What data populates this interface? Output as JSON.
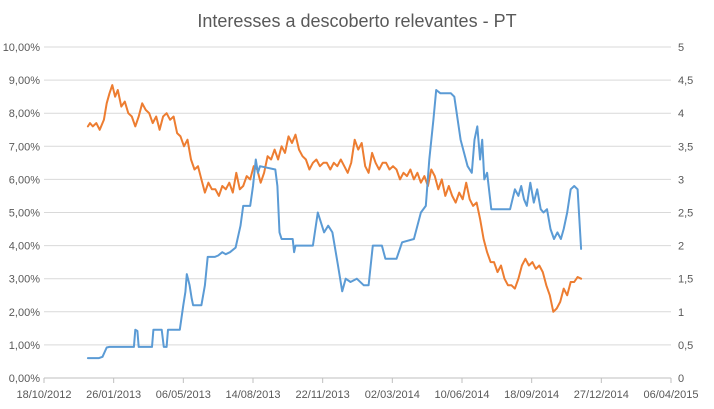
{
  "chart_data": {
    "type": "line",
    "title": "Interesses a descoberto relevantes - PT",
    "xlabel": "",
    "ylabel": "",
    "grid": true,
    "legend": "none",
    "x_axis": {
      "type": "date",
      "range": [
        "2012-10-18",
        "2015-04-06"
      ],
      "ticks": [
        "18/10/2012",
        "26/01/2013",
        "06/05/2013",
        "14/08/2013",
        "22/11/2013",
        "02/03/2014",
        "10/06/2014",
        "18/09/2014",
        "27/12/2014",
        "06/04/2015"
      ],
      "tick_dates": [
        "2012-10-18",
        "2013-01-26",
        "2013-05-06",
        "2013-08-14",
        "2013-11-22",
        "2014-03-02",
        "2014-06-10",
        "2014-09-18",
        "2014-12-27",
        "2015-04-06"
      ]
    },
    "y_left": {
      "ylim": [
        0,
        10
      ],
      "ticks": [
        "0,00%",
        "1,00%",
        "2,00%",
        "3,00%",
        "4,00%",
        "5,00%",
        "6,00%",
        "7,00%",
        "8,00%",
        "9,00%",
        "10,00%"
      ]
    },
    "y_right": {
      "ylim": [
        0,
        5
      ],
      "ticks": [
        "0",
        "0,5",
        "1",
        "1,5",
        "2",
        "2,5",
        "3",
        "3,5",
        "4",
        "4,5",
        "5"
      ]
    },
    "series": [
      {
        "axis": "left",
        "color": "#ed7d31",
        "points": [
          [
            "2012-12-20",
            7.6
          ],
          [
            "2012-12-23",
            7.7
          ],
          [
            "2012-12-27",
            7.6
          ],
          [
            "2013-01-01",
            7.7
          ],
          [
            "2013-01-06",
            7.5
          ],
          [
            "2013-01-12",
            7.8
          ],
          [
            "2013-01-16",
            8.3
          ],
          [
            "2013-01-20",
            8.6
          ],
          [
            "2013-01-24",
            8.85
          ],
          [
            "2013-01-28",
            8.5
          ],
          [
            "2013-02-01",
            8.7
          ],
          [
            "2013-02-06",
            8.2
          ],
          [
            "2013-02-11",
            8.35
          ],
          [
            "2013-02-16",
            8.0
          ],
          [
            "2013-02-21",
            7.9
          ],
          [
            "2013-02-26",
            7.6
          ],
          [
            "2013-03-03",
            7.9
          ],
          [
            "2013-03-08",
            8.3
          ],
          [
            "2013-03-13",
            8.1
          ],
          [
            "2013-03-18",
            8.0
          ],
          [
            "2013-03-23",
            7.7
          ],
          [
            "2013-03-28",
            7.9
          ],
          [
            "2013-04-02",
            7.5
          ],
          [
            "2013-04-07",
            7.9
          ],
          [
            "2013-04-12",
            8.0
          ],
          [
            "2013-04-17",
            7.8
          ],
          [
            "2013-04-22",
            7.9
          ],
          [
            "2013-04-27",
            7.4
          ],
          [
            "2013-05-02",
            7.3
          ],
          [
            "2013-05-07",
            7.0
          ],
          [
            "2013-05-12",
            7.2
          ],
          [
            "2013-05-17",
            6.6
          ],
          [
            "2013-05-22",
            6.3
          ],
          [
            "2013-05-27",
            6.4
          ],
          [
            "2013-06-01",
            6.0
          ],
          [
            "2013-06-06",
            5.6
          ],
          [
            "2013-06-11",
            5.9
          ],
          [
            "2013-06-16",
            5.7
          ],
          [
            "2013-06-21",
            5.7
          ],
          [
            "2013-06-26",
            5.5
          ],
          [
            "2013-07-01",
            5.8
          ],
          [
            "2013-07-06",
            5.7
          ],
          [
            "2013-07-11",
            5.9
          ],
          [
            "2013-07-16",
            5.6
          ],
          [
            "2013-07-21",
            6.2
          ],
          [
            "2013-07-26",
            5.7
          ],
          [
            "2013-07-31",
            5.8
          ],
          [
            "2013-08-05",
            6.1
          ],
          [
            "2013-08-10",
            6.0
          ],
          [
            "2013-08-15",
            6.4
          ],
          [
            "2013-08-20",
            6.3
          ],
          [
            "2013-08-25",
            5.9
          ],
          [
            "2013-08-30",
            6.2
          ],
          [
            "2013-09-04",
            6.7
          ],
          [
            "2013-09-09",
            6.6
          ],
          [
            "2013-09-14",
            6.9
          ],
          [
            "2013-09-19",
            6.6
          ],
          [
            "2013-09-24",
            7.0
          ],
          [
            "2013-09-29",
            6.8
          ],
          [
            "2013-10-04",
            7.3
          ],
          [
            "2013-10-09",
            7.1
          ],
          [
            "2013-10-14",
            7.35
          ],
          [
            "2013-10-19",
            6.9
          ],
          [
            "2013-10-24",
            6.7
          ],
          [
            "2013-10-29",
            6.6
          ],
          [
            "2013-11-03",
            6.3
          ],
          [
            "2013-11-08",
            6.5
          ],
          [
            "2013-11-13",
            6.6
          ],
          [
            "2013-11-18",
            6.4
          ],
          [
            "2013-11-23",
            6.5
          ],
          [
            "2013-11-28",
            6.5
          ],
          [
            "2013-12-03",
            6.3
          ],
          [
            "2013-12-08",
            6.5
          ],
          [
            "2013-12-13",
            6.4
          ],
          [
            "2013-12-18",
            6.6
          ],
          [
            "2013-12-23",
            6.4
          ],
          [
            "2013-12-28",
            6.2
          ],
          [
            "2014-01-02",
            6.5
          ],
          [
            "2014-01-07",
            7.2
          ],
          [
            "2014-01-12",
            6.9
          ],
          [
            "2014-01-17",
            7.1
          ],
          [
            "2014-01-22",
            6.4
          ],
          [
            "2014-01-27",
            6.2
          ],
          [
            "2014-02-01",
            6.8
          ],
          [
            "2014-02-06",
            6.5
          ],
          [
            "2014-02-11",
            6.3
          ],
          [
            "2014-02-16",
            6.5
          ],
          [
            "2014-02-21",
            6.5
          ],
          [
            "2014-02-26",
            6.3
          ],
          [
            "2014-03-03",
            6.4
          ],
          [
            "2014-03-08",
            6.3
          ],
          [
            "2014-03-13",
            6.0
          ],
          [
            "2014-03-18",
            6.2
          ],
          [
            "2014-03-23",
            6.1
          ],
          [
            "2014-03-28",
            6.3
          ],
          [
            "2014-04-02",
            6.0
          ],
          [
            "2014-04-07",
            6.2
          ],
          [
            "2014-04-12",
            5.9
          ],
          [
            "2014-04-17",
            6.1
          ],
          [
            "2014-04-22",
            5.8
          ],
          [
            "2014-04-27",
            6.3
          ],
          [
            "2014-05-02",
            6.1
          ],
          [
            "2014-05-07",
            5.7
          ],
          [
            "2014-05-12",
            6.0
          ],
          [
            "2014-05-17",
            5.5
          ],
          [
            "2014-05-22",
            5.8
          ],
          [
            "2014-05-27",
            5.5
          ],
          [
            "2014-06-01",
            5.3
          ],
          [
            "2014-06-06",
            5.6
          ],
          [
            "2014-06-11",
            5.4
          ],
          [
            "2014-06-16",
            5.9
          ],
          [
            "2014-06-21",
            5.4
          ],
          [
            "2014-06-26",
            5.2
          ],
          [
            "2014-07-01",
            5.3
          ],
          [
            "2014-07-06",
            4.8
          ],
          [
            "2014-07-11",
            4.2
          ],
          [
            "2014-07-16",
            3.8
          ],
          [
            "2014-07-21",
            3.5
          ],
          [
            "2014-07-26",
            3.5
          ],
          [
            "2014-07-31",
            3.2
          ],
          [
            "2014-08-05",
            3.4
          ],
          [
            "2014-08-10",
            3.0
          ],
          [
            "2014-08-15",
            2.8
          ],
          [
            "2014-08-20",
            2.8
          ],
          [
            "2014-08-25",
            2.7
          ],
          [
            "2014-08-30",
            3.0
          ],
          [
            "2014-09-04",
            3.4
          ],
          [
            "2014-09-09",
            3.6
          ],
          [
            "2014-09-14",
            3.4
          ],
          [
            "2014-09-19",
            3.5
          ],
          [
            "2014-09-24",
            3.3
          ],
          [
            "2014-09-29",
            3.4
          ],
          [
            "2014-10-04",
            3.2
          ],
          [
            "2014-10-09",
            2.8
          ],
          [
            "2014-10-14",
            2.5
          ],
          [
            "2014-10-19",
            2.0
          ],
          [
            "2014-10-24",
            2.1
          ],
          [
            "2014-10-29",
            2.3
          ],
          [
            "2014-11-03",
            2.7
          ],
          [
            "2014-11-08",
            2.5
          ],
          [
            "2014-11-13",
            2.9
          ],
          [
            "2014-11-18",
            2.9
          ],
          [
            "2014-11-23",
            3.05
          ],
          [
            "2014-11-28",
            3.0
          ]
        ]
      },
      {
        "axis": "right",
        "color": "#5b9bd5",
        "points": [
          [
            "2012-12-20",
            0.3
          ],
          [
            "2013-01-05",
            0.3
          ],
          [
            "2013-01-10",
            0.32
          ],
          [
            "2013-01-16",
            0.46
          ],
          [
            "2013-01-20",
            0.47
          ],
          [
            "2013-02-20",
            0.47
          ],
          [
            "2013-02-24",
            0.47
          ],
          [
            "2013-02-26",
            0.73
          ],
          [
            "2013-03-01",
            0.71
          ],
          [
            "2013-03-03",
            0.47
          ],
          [
            "2013-03-22",
            0.47
          ],
          [
            "2013-03-24",
            0.73
          ],
          [
            "2013-04-05",
            0.73
          ],
          [
            "2013-04-08",
            0.47
          ],
          [
            "2013-04-12",
            0.47
          ],
          [
            "2013-04-14",
            0.73
          ],
          [
            "2013-05-01",
            0.73
          ],
          [
            "2013-05-06",
            1.1
          ],
          [
            "2013-05-09",
            1.3
          ],
          [
            "2013-05-11",
            1.57
          ],
          [
            "2013-05-15",
            1.4
          ],
          [
            "2013-05-18",
            1.2
          ],
          [
            "2013-05-20",
            1.1
          ],
          [
            "2013-06-01",
            1.1
          ],
          [
            "2013-06-06",
            1.4
          ],
          [
            "2013-06-10",
            1.83
          ],
          [
            "2013-06-20",
            1.83
          ],
          [
            "2013-06-25",
            1.85
          ],
          [
            "2013-07-01",
            1.9
          ],
          [
            "2013-07-06",
            1.87
          ],
          [
            "2013-07-12",
            1.9
          ],
          [
            "2013-07-20",
            1.97
          ],
          [
            "2013-07-27",
            2.3
          ],
          [
            "2013-07-31",
            2.6
          ],
          [
            "2013-08-10",
            2.6
          ],
          [
            "2013-08-14",
            2.9
          ],
          [
            "2013-08-18",
            3.3
          ],
          [
            "2013-08-21",
            3.1
          ],
          [
            "2013-08-24",
            3.2
          ],
          [
            "2013-09-15",
            3.15
          ],
          [
            "2013-09-18",
            2.9
          ],
          [
            "2013-09-21",
            2.2
          ],
          [
            "2013-09-24",
            2.1
          ],
          [
            "2013-10-10",
            2.1
          ],
          [
            "2013-10-12",
            1.9
          ],
          [
            "2013-10-14",
            2.0
          ],
          [
            "2013-11-08",
            2.0
          ],
          [
            "2013-11-15",
            2.5
          ],
          [
            "2013-11-24",
            2.2
          ],
          [
            "2013-11-30",
            2.3
          ],
          [
            "2013-12-06",
            2.2
          ],
          [
            "2013-12-14",
            1.7
          ],
          [
            "2013-12-20",
            1.31
          ],
          [
            "2013-12-25",
            1.5
          ],
          [
            "2014-01-01",
            1.45
          ],
          [
            "2014-01-10",
            1.5
          ],
          [
            "2014-01-20",
            1.4
          ],
          [
            "2014-01-27",
            1.4
          ],
          [
            "2014-02-02",
            2.0
          ],
          [
            "2014-02-15",
            2.0
          ],
          [
            "2014-02-20",
            1.8
          ],
          [
            "2014-03-02",
            1.8
          ],
          [
            "2014-03-08",
            1.8
          ],
          [
            "2014-03-16",
            2.05
          ],
          [
            "2014-04-02",
            2.1
          ],
          [
            "2014-04-12",
            2.5
          ],
          [
            "2014-04-19",
            2.6
          ],
          [
            "2014-04-24",
            3.3
          ],
          [
            "2014-04-30",
            3.9
          ],
          [
            "2014-05-04",
            4.35
          ],
          [
            "2014-05-10",
            4.3
          ],
          [
            "2014-05-25",
            4.3
          ],
          [
            "2014-05-30",
            4.25
          ],
          [
            "2014-06-08",
            3.6
          ],
          [
            "2014-06-18",
            3.2
          ],
          [
            "2014-06-24",
            3.1
          ],
          [
            "2014-06-28",
            3.6
          ],
          [
            "2014-07-02",
            3.8
          ],
          [
            "2014-07-06",
            3.3
          ],
          [
            "2014-07-09",
            3.6
          ],
          [
            "2014-07-12",
            3.0
          ],
          [
            "2014-07-16",
            3.1
          ],
          [
            "2014-07-22",
            2.55
          ],
          [
            "2014-08-18",
            2.55
          ],
          [
            "2014-08-25",
            2.85
          ],
          [
            "2014-08-30",
            2.75
          ],
          [
            "2014-09-03",
            2.9
          ],
          [
            "2014-09-07",
            2.7
          ],
          [
            "2014-09-11",
            2.6
          ],
          [
            "2014-09-16",
            2.95
          ],
          [
            "2014-09-21",
            2.65
          ],
          [
            "2014-09-26",
            2.85
          ],
          [
            "2014-10-01",
            2.55
          ],
          [
            "2014-10-05",
            2.5
          ],
          [
            "2014-10-10",
            2.55
          ],
          [
            "2014-10-15",
            2.25
          ],
          [
            "2014-10-20",
            2.1
          ],
          [
            "2014-10-25",
            2.2
          ],
          [
            "2014-10-30",
            2.1
          ],
          [
            "2014-11-03",
            2.25
          ],
          [
            "2014-11-08",
            2.5
          ],
          [
            "2014-11-13",
            2.85
          ],
          [
            "2014-11-18",
            2.9
          ],
          [
            "2014-11-23",
            2.85
          ],
          [
            "2014-11-28",
            1.95
          ]
        ]
      }
    ]
  }
}
